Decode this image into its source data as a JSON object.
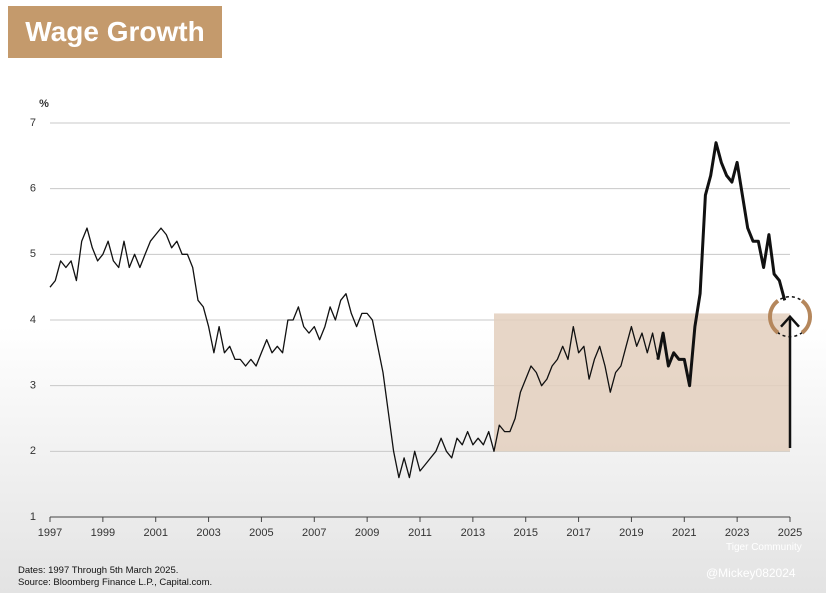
{
  "chart_data": {
    "type": "line",
    "title": "Wage Growth",
    "y_label": "%",
    "footnotes": [
      "Dates: 1997 Through 5th March 2025.",
      "Source: Bloomberg Finance L.P., Capital.com."
    ],
    "watermarks": [
      "Tiger Community",
      "@Mickey082024"
    ],
    "xlim": [
      1997,
      2025
    ],
    "xticks": [
      1997,
      1999,
      2001,
      2003,
      2005,
      2007,
      2009,
      2011,
      2013,
      2015,
      2017,
      2019,
      2021,
      2023,
      2025
    ],
    "ylim": [
      1,
      7
    ],
    "yticks": [
      1,
      2,
      3,
      4,
      5,
      6,
      7
    ],
    "grid": true,
    "highlight": {
      "x": [
        2013.8,
        2025
      ],
      "y": [
        2,
        4.1
      ],
      "color": "#e3cfbd"
    },
    "arrow": {
      "x": 2025,
      "from": 2.05,
      "to": 4.05
    },
    "bold_from": 2020,
    "series": [
      {
        "name": "Wage Growth",
        "color": "#111111",
        "x": [
          1997.0,
          1997.2,
          1997.4,
          1997.6,
          1997.8,
          1998.0,
          1998.2,
          1998.4,
          1998.6,
          1998.8,
          1999.0,
          1999.2,
          1999.4,
          1999.6,
          1999.8,
          2000.0,
          2000.2,
          2000.4,
          2000.6,
          2000.8,
          2001.0,
          2001.2,
          2001.4,
          2001.6,
          2001.8,
          2002.0,
          2002.2,
          2002.4,
          2002.6,
          2002.8,
          2003.0,
          2003.2,
          2003.4,
          2003.6,
          2003.8,
          2004.0,
          2004.2,
          2004.4,
          2004.6,
          2004.8,
          2005.0,
          2005.2,
          2005.4,
          2005.6,
          2005.8,
          2006.0,
          2006.2,
          2006.4,
          2006.6,
          2006.8,
          2007.0,
          2007.2,
          2007.4,
          2007.6,
          2007.8,
          2008.0,
          2008.2,
          2008.4,
          2008.6,
          2008.8,
          2009.0,
          2009.2,
          2009.4,
          2009.6,
          2009.8,
          2010.0,
          2010.2,
          2010.4,
          2010.6,
          2010.8,
          2011.0,
          2011.2,
          2011.4,
          2011.6,
          2011.8,
          2012.0,
          2012.2,
          2012.4,
          2012.6,
          2012.8,
          2013.0,
          2013.2,
          2013.4,
          2013.6,
          2013.8,
          2014.0,
          2014.2,
          2014.4,
          2014.6,
          2014.8,
          2015.0,
          2015.2,
          2015.4,
          2015.6,
          2015.8,
          2016.0,
          2016.2,
          2016.4,
          2016.6,
          2016.8,
          2017.0,
          2017.2,
          2017.4,
          2017.6,
          2017.8,
          2018.0,
          2018.2,
          2018.4,
          2018.6,
          2018.8,
          2019.0,
          2019.2,
          2019.4,
          2019.6,
          2019.8,
          2020.0,
          2020.2,
          2020.4,
          2020.6,
          2020.8,
          2021.0,
          2021.2,
          2021.4,
          2021.6,
          2021.8,
          2022.0,
          2022.2,
          2022.4,
          2022.6,
          2022.8,
          2023.0,
          2023.2,
          2023.4,
          2023.6,
          2023.8,
          2024.0,
          2024.2,
          2024.4,
          2024.6,
          2024.8
        ],
        "values": [
          4.5,
          4.6,
          4.9,
          4.8,
          4.9,
          4.6,
          5.2,
          5.4,
          5.1,
          4.9,
          5.0,
          5.2,
          4.9,
          4.8,
          5.2,
          4.8,
          5.0,
          4.8,
          5.0,
          5.2,
          5.3,
          5.4,
          5.3,
          5.1,
          5.2,
          5.0,
          5.0,
          4.8,
          4.3,
          4.2,
          3.9,
          3.5,
          3.9,
          3.5,
          3.6,
          3.4,
          3.4,
          3.3,
          3.4,
          3.3,
          3.5,
          3.7,
          3.5,
          3.6,
          3.5,
          4.0,
          4.0,
          4.2,
          3.9,
          3.8,
          3.9,
          3.7,
          3.9,
          4.2,
          4.0,
          4.3,
          4.4,
          4.1,
          3.9,
          4.1,
          4.1,
          4.0,
          3.6,
          3.2,
          2.6,
          2.0,
          1.6,
          1.9,
          1.6,
          2.0,
          1.7,
          1.8,
          1.9,
          2.0,
          2.2,
          2.0,
          1.9,
          2.2,
          2.1,
          2.3,
          2.1,
          2.2,
          2.1,
          2.3,
          2.0,
          2.4,
          2.3,
          2.3,
          2.5,
          2.9,
          3.1,
          3.3,
          3.2,
          3.0,
          3.1,
          3.3,
          3.4,
          3.6,
          3.4,
          3.9,
          3.5,
          3.6,
          3.1,
          3.4,
          3.6,
          3.3,
          2.9,
          3.2,
          3.3,
          3.6,
          3.9,
          3.6,
          3.8,
          3.5,
          3.8,
          3.4,
          3.8,
          3.3,
          3.5,
          3.4,
          3.4,
          3.0,
          3.9,
          4.4,
          5.9,
          6.2,
          6.7,
          6.4,
          6.2,
          6.1,
          6.4,
          5.9,
          5.4,
          5.2,
          5.2,
          4.8,
          5.3,
          4.7,
          4.6,
          4.3
        ]
      }
    ]
  }
}
